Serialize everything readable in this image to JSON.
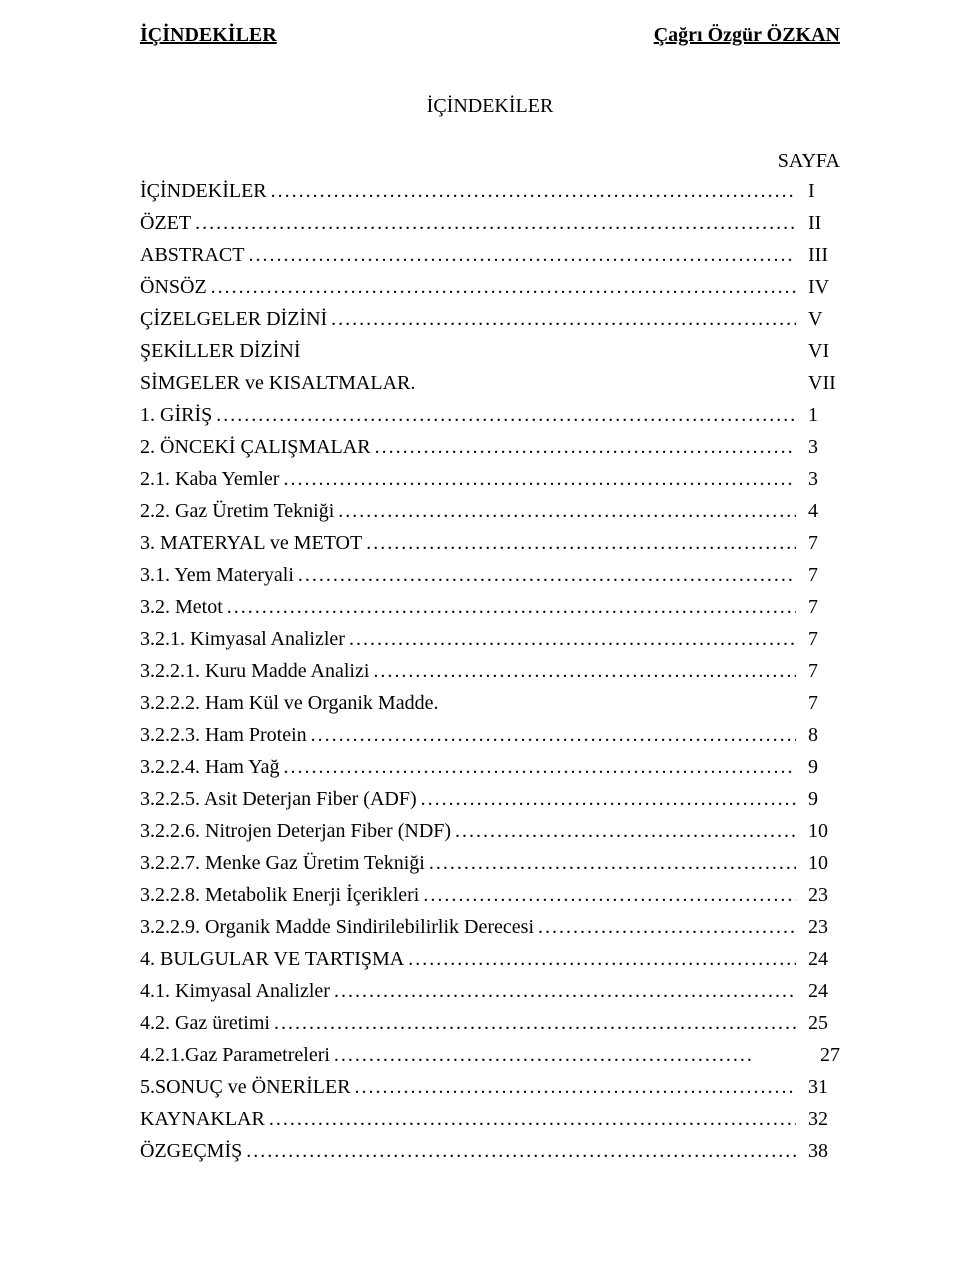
{
  "header": {
    "left": "İÇİNDEKİLER",
    "right": "Çağrı Özgür ÖZKAN"
  },
  "title": "İÇİNDEKİLER",
  "page_col_label": "SAYFA",
  "leader": "........................................................................................................................................................................................",
  "toc": [
    {
      "label": "İÇİNDEKİLER",
      "leader": true,
      "page": "I"
    },
    {
      "label": "ÖZET",
      "leader": true,
      "page": "II"
    },
    {
      "label": "ABSTRACT",
      "leader": true,
      "page": "III"
    },
    {
      "label": "ÖNSÖZ",
      "leader": true,
      "page": "IV"
    },
    {
      "label": "ÇİZELGELER DİZİNİ",
      "leader": true,
      "page": "V"
    },
    {
      "label": "ŞEKİLLER DİZİNİ",
      "leader": false,
      "page": "VI"
    },
    {
      "label": "SİMGELER ve KISALTMALAR.",
      "leader": false,
      "page": "VII"
    },
    {
      "label": "1. GİRİŞ",
      "leader": true,
      "page": "1"
    },
    {
      "label": "2. ÖNCEKİ ÇALIŞMALAR",
      "leader": true,
      "page": "3"
    },
    {
      "label": "2.1. Kaba Yemler",
      "leader": true,
      "page": "3"
    },
    {
      "label": "2.2. Gaz Üretim Tekniği",
      "leader": true,
      "page": "4"
    },
    {
      "label": "3. MATERYAL ve METOT",
      "leader": true,
      "page": "7"
    },
    {
      "label": "3.1. Yem Materyali",
      "leader": true,
      "page": "7"
    },
    {
      "label": "3.2. Metot",
      "leader": true,
      "page": "7"
    },
    {
      "label": "3.2.1. Kimyasal Analizler",
      "leader": true,
      "page": "7"
    },
    {
      "label": "3.2.2.1. Kuru Madde Analizi",
      "leader": true,
      "page": "7"
    },
    {
      "label": "3.2.2.2. Ham Kül ve Organik Madde.",
      "leader": false,
      "page": "7"
    },
    {
      "label": "3.2.2.3. Ham Protein",
      "leader": true,
      "page": "8"
    },
    {
      "label": "3.2.2.4. Ham Yağ",
      "leader": true,
      "page": "9"
    },
    {
      "label": "3.2.2.5. Asit Deterjan Fiber (ADF)",
      "leader": true,
      "page": "9"
    },
    {
      "label": "3.2.2.6. Nitrojen  Deterjan Fiber (NDF)",
      "leader": true,
      "page": "10"
    },
    {
      "label": "3.2.2.7. Menke Gaz Üretim Tekniği",
      "leader": true,
      "page": "10"
    },
    {
      "label": "3.2.2.8. Metabolik Enerji İçerikleri",
      "leader": true,
      "page": "23"
    },
    {
      "label": "3.2.2.9. Organik Madde Sindirilebilirlik Derecesi",
      "leader": true,
      "page": "23"
    },
    {
      "label": "4. BULGULAR VE TARTIŞMA",
      "leader": true,
      "page": "24"
    },
    {
      "label": "4.1. Kimyasal Analizler",
      "leader": true,
      "page": "24"
    },
    {
      "label": "4.2. Gaz üretimi",
      "leader": true,
      "page": "25"
    },
    {
      "label": "4.2.1.Gaz Parametreleri",
      "leader": true,
      "page": "",
      "extra": "27"
    },
    {
      "label": "5.SONUÇ ve ÖNERİLER",
      "leader": true,
      "page": "31"
    },
    {
      "label": "KAYNAKLAR",
      "leader": true,
      "page": "32"
    },
    {
      "label": "ÖZGEÇMİŞ",
      "leader": true,
      "page": "38"
    }
  ]
}
